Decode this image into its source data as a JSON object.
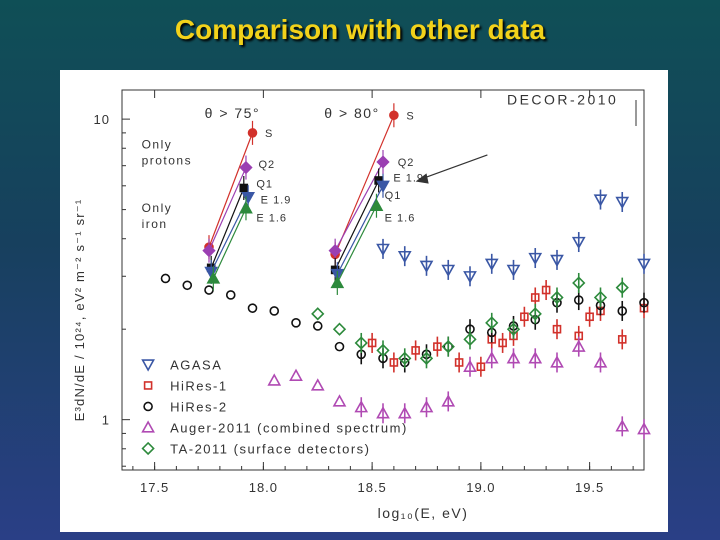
{
  "slide": {
    "title": "Comparison with other data"
  },
  "chart_data": {
    "type": "scatter",
    "xlabel": "log₁₀(E, eV)",
    "ylabel": "E³dN/dE / 10²⁴, eV² m⁻² s⁻¹ sr⁻¹",
    "xlim": [
      17.35,
      19.75
    ],
    "ylim": [
      0.68,
      12.5
    ],
    "yscale": "log",
    "xticks": [
      17.5,
      18.0,
      18.5,
      19.0,
      19.5
    ],
    "xtick_labels": [
      "17.5",
      "18.0",
      "18.5",
      "19.0",
      "19.5"
    ],
    "yticks": [
      1,
      10
    ],
    "ytick_labels": [
      "1",
      "10"
    ],
    "series": [
      {
        "name": "AGASA",
        "marker": "triangle-down",
        "color": "#3a57a5",
        "x": [
          18.55,
          18.65,
          18.75,
          18.85,
          18.95,
          19.05,
          19.15,
          19.25,
          19.35,
          19.45,
          19.55,
          19.65,
          19.75
        ],
        "y": [
          3.7,
          3.5,
          3.25,
          3.15,
          3.0,
          3.3,
          3.15,
          3.45,
          3.4,
          3.9,
          5.4,
          5.3,
          3.3
        ]
      },
      {
        "name": "HiRes-1",
        "marker": "square",
        "color": "#d2312b",
        "x": [
          18.5,
          18.6,
          18.7,
          18.8,
          18.9,
          19.0,
          19.05,
          19.1,
          19.15,
          19.2,
          19.25,
          19.3,
          19.35,
          19.45,
          19.5,
          19.55,
          19.65,
          19.75
        ],
        "y": [
          1.8,
          1.55,
          1.7,
          1.75,
          1.55,
          1.5,
          1.85,
          1.8,
          1.9,
          2.2,
          2.55,
          2.7,
          2.0,
          1.9,
          2.2,
          2.3,
          1.85,
          2.35
        ]
      },
      {
        "name": "HiRes-2",
        "marker": "circle",
        "color": "#111111",
        "x": [
          17.55,
          17.65,
          17.75,
          17.85,
          17.95,
          18.05,
          18.15,
          18.25,
          18.35,
          18.45,
          18.55,
          18.65,
          18.75,
          18.85,
          18.95,
          19.05,
          19.15,
          19.25,
          19.35,
          19.45,
          19.55,
          19.65,
          19.75
        ],
        "y": [
          2.95,
          2.8,
          2.7,
          2.6,
          2.35,
          2.3,
          2.1,
          2.05,
          1.75,
          1.65,
          1.6,
          1.55,
          1.65,
          1.75,
          2.0,
          1.95,
          2.05,
          2.15,
          2.45,
          2.5,
          2.4,
          2.3,
          2.45
        ]
      },
      {
        "name": "Auger-2011 (combined spectrum)",
        "marker": "triangle-up",
        "color": "#b04ab3",
        "x": [
          18.05,
          18.15,
          18.25,
          18.35,
          18.45,
          18.55,
          18.65,
          18.75,
          18.85,
          18.95,
          19.05,
          19.15,
          19.25,
          19.35,
          19.45,
          19.55,
          19.65,
          19.75
        ],
        "y": [
          1.35,
          1.4,
          1.3,
          1.15,
          1.1,
          1.05,
          1.05,
          1.1,
          1.15,
          1.5,
          1.6,
          1.6,
          1.6,
          1.55,
          1.75,
          1.55,
          0.95,
          0.93
        ]
      },
      {
        "name": "TA-2011 (surface detectors)",
        "marker": "diamond",
        "color": "#2d8a3c",
        "x": [
          18.25,
          18.35,
          18.45,
          18.55,
          18.65,
          18.75,
          18.85,
          18.95,
          19.05,
          19.15,
          19.25,
          19.35,
          19.45,
          19.55,
          19.65
        ],
        "y": [
          2.25,
          2.0,
          1.8,
          1.7,
          1.6,
          1.6,
          1.75,
          1.85,
          2.1,
          2.0,
          2.25,
          2.55,
          2.85,
          2.55,
          2.75
        ]
      }
    ],
    "bundles": [
      {
        "caption": "θ > 75°",
        "lines": [
          {
            "name": "S",
            "color": "#d2312b",
            "marker": "circle",
            "x": [
              17.75,
              17.95
            ],
            "y": [
              3.75,
              9.0
            ]
          },
          {
            "name": "Q2",
            "color": "#9b3fb2",
            "marker": "diamond",
            "x": [
              17.75,
              17.92
            ],
            "y": [
              3.65,
              6.9
            ]
          },
          {
            "name": "Q1",
            "color": "#111111",
            "marker": "square",
            "x": [
              17.76,
              17.91
            ],
            "y": [
              3.2,
              5.9
            ]
          },
          {
            "name": "E 1.9",
            "color": "#3a57a5",
            "marker": "triangle-down",
            "x": [
              17.76,
              17.93
            ],
            "y": [
              3.1,
              5.5
            ]
          },
          {
            "name": "E 1.6",
            "color": "#2d8a3c",
            "marker": "triangle-up",
            "x": [
              17.77,
              17.92
            ],
            "y": [
              2.95,
              5.05
            ]
          }
        ]
      },
      {
        "caption": "θ > 80°",
        "lines": [
          {
            "name": "S",
            "color": "#d2312b",
            "marker": "circle",
            "x": [
              18.33,
              18.6
            ],
            "y": [
              3.55,
              10.3
            ]
          },
          {
            "name": "Q2",
            "color": "#9b3fb2",
            "marker": "diamond",
            "x": [
              18.33,
              18.55
            ],
            "y": [
              3.65,
              7.2
            ]
          },
          {
            "name": "Q1",
            "color": "#111111",
            "marker": "square",
            "x": [
              18.33,
              18.53
            ],
            "y": [
              3.15,
              6.25
            ]
          },
          {
            "name": "E 1.9",
            "color": "#3a57a5",
            "marker": "triangle-down",
            "x": [
              18.34,
              18.55
            ],
            "y": [
              3.05,
              6.0
            ]
          },
          {
            "name": "E 1.6",
            "color": "#2d8a3c",
            "marker": "triangle-up",
            "x": [
              18.34,
              18.52
            ],
            "y": [
              2.85,
              5.15
            ]
          }
        ]
      }
    ],
    "annotations": {
      "decor": "DECOR-2010",
      "only_protons": [
        "Only",
        "protons"
      ],
      "only_iron": [
        "Only",
        "iron"
      ]
    }
  }
}
